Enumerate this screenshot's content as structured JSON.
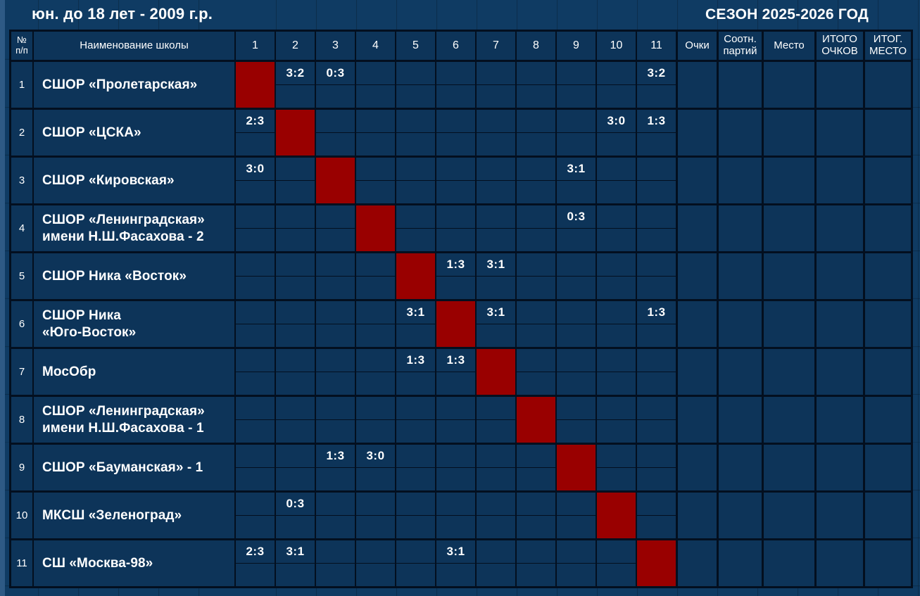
{
  "titles": {
    "left": "юн. до 18 лет - 2009 г.р.",
    "right": "СЕЗОН 2025-2026 ГОД"
  },
  "colors": {
    "background": "#0f3b63",
    "cell": "#0d3459",
    "diagonal": "#990000",
    "grid_line": "#030f1f",
    "text": "#ffffff",
    "left_strip": "#2e5a85"
  },
  "table": {
    "corner_header": "№\nп/п",
    "school_header": "Наименование школы",
    "opponent_headers": [
      "1",
      "2",
      "3",
      "4",
      "5",
      "6",
      "7",
      "8",
      "9",
      "10",
      "11"
    ],
    "stat_headers": [
      "Очки",
      "Соотн.\nпартий",
      "Место",
      "ИТОГО\nОЧКОВ",
      "ИТОГ.\nМЕСТО"
    ],
    "stat_keys": [
      "points",
      "set-ratio",
      "place",
      "total-points",
      "final-place"
    ],
    "teams": [
      {
        "num": "1",
        "name": "СШОР «Пролетарская»",
        "results": {
          "2": "3:2",
          "3": "0:3",
          "11": "3:2"
        }
      },
      {
        "num": "2",
        "name": "СШОР «ЦСКА»",
        "results": {
          "1": "2:3",
          "10": "3:0",
          "11": "1:3"
        }
      },
      {
        "num": "3",
        "name": "СШОР «Кировская»",
        "results": {
          "1": "3:0",
          "9": "3:1"
        }
      },
      {
        "num": "4",
        "name": "СШОР «Ленинградская»\nимени Н.Ш.Фасахова - 2",
        "results": {
          "9": "0:3"
        }
      },
      {
        "num": "5",
        "name": "СШОР Ника «Восток»",
        "results": {
          "6": "1:3",
          "7": "3:1"
        }
      },
      {
        "num": "6",
        "name": "СШОР Ника\n«Юго-Восток»",
        "results": {
          "5": "3:1",
          "7": "3:1",
          "11": "1:3"
        }
      },
      {
        "num": "7",
        "name": "МосОбр",
        "results": {
          "5": "1:3",
          "6": "1:3"
        }
      },
      {
        "num": "8",
        "name": "СШОР «Ленинградская»\nимени Н.Ш.Фасахова - 1",
        "results": {}
      },
      {
        "num": "9",
        "name": "СШОР «Бауманская» - 1",
        "results": {
          "3": "1:3",
          "4": "3:0"
        }
      },
      {
        "num": "10",
        "name": "МКСШ «Зеленоград»",
        "results": {
          "2": "0:3"
        }
      },
      {
        "num": "11",
        "name": "СШ «Москва-98»",
        "results": {
          "1": "2:3",
          "2": "3:1",
          "6": "3:1"
        }
      }
    ]
  }
}
